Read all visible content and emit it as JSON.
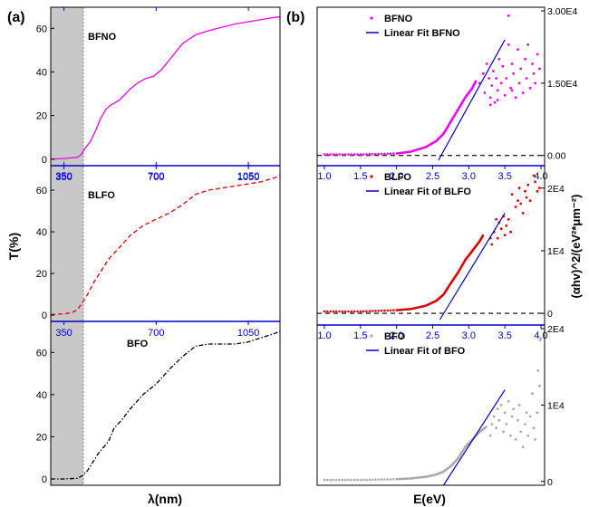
{
  "figure": {
    "panel_a_label": "(a)",
    "panel_b_label": "(b)",
    "a_ylabel": "T(%)",
    "a_xlabel": "λ(nm)",
    "b_xlabel": "E(eV)",
    "b_ylabel": "(αhv)^2/(eV²*μm⁻²)"
  },
  "colors": {
    "bfno": "#ee00ee",
    "blfo": "#dd0000",
    "bfo": "#000000",
    "bfo_points": "#aaaaaa",
    "fit": "#0000cc",
    "axis_blue": "#0000cc",
    "shade": "#c8c8c8"
  },
  "chart_data": [
    {
      "type": "line",
      "id": "a_bfno",
      "label": "BFNO",
      "style": "solid",
      "colorKey": "bfno",
      "xlim": [
        300,
        1170
      ],
      "ylim": [
        -3,
        68
      ],
      "yticks": [
        0,
        20,
        40,
        60
      ],
      "xticks": [
        350,
        700,
        1050
      ],
      "xticks_visible": true,
      "shaded_x": [
        300,
        400
      ],
      "x": [
        300,
        350,
        400,
        415,
        430,
        450,
        470,
        490,
        510,
        530,
        560,
        600,
        630,
        660,
        690,
        720,
        760,
        800,
        850,
        900,
        950,
        1000,
        1050,
        1100,
        1150,
        1170
      ],
      "y": [
        0,
        0.3,
        0.8,
        2,
        5,
        8,
        13,
        19,
        23,
        25,
        27,
        32,
        35,
        37,
        38,
        41,
        47,
        53,
        57,
        59,
        60.5,
        62,
        63,
        64,
        65,
        65.2
      ]
    },
    {
      "type": "line",
      "id": "a_blfo",
      "label": "BLFO",
      "style": "dashed",
      "colorKey": "blfo",
      "xlim": [
        300,
        1170
      ],
      "ylim": [
        -3,
        70
      ],
      "yticks": [
        0,
        20,
        40,
        60
      ],
      "xticks": [
        350,
        700,
        1050
      ],
      "xticks_visible": true,
      "shaded_x": [
        300,
        400
      ],
      "x": [
        300,
        350,
        380,
        400,
        420,
        440,
        460,
        480,
        500,
        520,
        550,
        600,
        650,
        700,
        750,
        800,
        850,
        900,
        950,
        1000,
        1050,
        1100,
        1150,
        1170
      ],
      "y": [
        0.3,
        0.6,
        1.2,
        2.5,
        6,
        10,
        15,
        19,
        23,
        27,
        31,
        38,
        43,
        46,
        49,
        53,
        58,
        60,
        61,
        62,
        63,
        64,
        66,
        67
      ]
    },
    {
      "type": "line",
      "id": "a_bfo",
      "label": "BFO",
      "style": "dashdot",
      "colorKey": "bfo",
      "xlim": [
        300,
        1170
      ],
      "ylim": [
        -3,
        73
      ],
      "yticks": [
        0,
        20,
        40,
        60
      ],
      "xticks": [
        350,
        700,
        1050
      ],
      "xticks_visible": true,
      "shaded_x": [
        300,
        400
      ],
      "x": [
        300,
        350,
        400,
        420,
        440,
        460,
        480,
        500,
        520,
        540,
        570,
        600,
        650,
        700,
        750,
        800,
        850,
        900,
        950,
        1000,
        1050,
        1100,
        1150,
        1170
      ],
      "y": [
        0,
        0,
        0.3,
        1.5,
        4,
        8,
        12,
        15,
        18,
        24,
        28,
        33,
        40,
        45,
        52,
        58,
        63,
        64,
        64,
        64,
        65,
        67,
        69,
        70
      ]
    },
    {
      "type": "scatter",
      "id": "b_bfno",
      "label": "BFNO",
      "fit_label": "Linear Fit BFNO",
      "colorKey": "bfno",
      "xlim": [
        0.9,
        4.05
      ],
      "ylim": [
        -0.1,
        3.0
      ],
      "xticks": [
        1.0,
        1.5,
        2.0,
        2.5,
        3.0,
        3.5,
        4.0
      ],
      "xticks_visible": true,
      "yticks": [
        0,
        1.5,
        3.0
      ],
      "yticklabels": [
        "0.00",
        "1.50E4",
        "3.00E4"
      ],
      "hline": 0,
      "fit": [
        [
          2.58,
          -0.1
        ],
        [
          3.5,
          2.4
        ]
      ],
      "points_curve": [
        [
          1.0,
          0.02
        ],
        [
          1.5,
          0.02
        ],
        [
          2.0,
          0.04
        ],
        [
          2.2,
          0.08
        ],
        [
          2.4,
          0.17
        ],
        [
          2.55,
          0.3
        ],
        [
          2.65,
          0.45
        ],
        [
          2.75,
          0.7
        ],
        [
          2.85,
          0.95
        ],
        [
          2.95,
          1.2
        ],
        [
          3.05,
          1.4
        ],
        [
          3.1,
          1.55
        ]
      ],
      "points_scatter": [
        [
          3.15,
          1.5
        ],
        [
          3.2,
          1.7
        ],
        [
          3.22,
          1.3
        ],
        [
          3.25,
          1.9
        ],
        [
          3.28,
          1.6
        ],
        [
          3.3,
          1.2
        ],
        [
          3.32,
          1.45
        ],
        [
          3.34,
          1.75
        ],
        [
          3.36,
          1.1
        ],
        [
          3.38,
          1.6
        ],
        [
          3.4,
          1.35
        ],
        [
          3.42,
          2.0
        ],
        [
          3.45,
          1.5
        ],
        [
          3.47,
          1.85
        ],
        [
          3.5,
          1.25
        ],
        [
          3.52,
          1.6
        ],
        [
          3.55,
          2.3
        ],
        [
          3.58,
          1.4
        ],
        [
          3.6,
          1.9
        ],
        [
          3.62,
          1.7
        ],
        [
          3.65,
          1.2
        ],
        [
          3.68,
          2.2
        ],
        [
          3.7,
          1.5
        ],
        [
          3.72,
          1.8
        ],
        [
          3.75,
          1.3
        ],
        [
          3.78,
          2.0
        ],
        [
          3.8,
          1.6
        ],
        [
          3.82,
          2.3
        ],
        [
          3.85,
          1.4
        ],
        [
          3.88,
          1.9
        ],
        [
          3.9,
          1.7
        ],
        [
          3.92,
          1.5
        ],
        [
          3.95,
          2.1
        ],
        [
          3.98,
          1.8
        ],
        [
          3.55,
          2.9
        ],
        [
          3.3,
          1.05
        ],
        [
          3.4,
          1.15
        ],
        [
          3.6,
          1.35
        ]
      ]
    },
    {
      "type": "scatter",
      "id": "b_blfo",
      "label": "BLFO",
      "fit_label": "Linear Fit of BLFO",
      "colorKey": "blfo",
      "xlim": [
        0.9,
        4.05
      ],
      "ylim": [
        -0.1,
        2.3
      ],
      "xticks": [
        1.0,
        1.5,
        2.0,
        2.5,
        3.0,
        3.5,
        4.0
      ],
      "xticks_visible": true,
      "yticks": [
        0,
        1.0,
        2.0
      ],
      "yticklabels": [
        "0",
        "1E4",
        "2E4"
      ],
      "hline": 0,
      "fit": [
        [
          2.6,
          -0.1
        ],
        [
          3.5,
          1.6
        ]
      ],
      "points_curve": [
        [
          1.0,
          0.03
        ],
        [
          1.5,
          0.03
        ],
        [
          2.0,
          0.05
        ],
        [
          2.2,
          0.07
        ],
        [
          2.4,
          0.12
        ],
        [
          2.55,
          0.2
        ],
        [
          2.65,
          0.3
        ],
        [
          2.75,
          0.48
        ],
        [
          2.85,
          0.65
        ],
        [
          2.95,
          0.85
        ],
        [
          3.05,
          1.0
        ],
        [
          3.15,
          1.15
        ],
        [
          3.2,
          1.25
        ]
      ],
      "points_scatter": [
        [
          3.35,
          1.3
        ],
        [
          3.38,
          1.5
        ],
        [
          3.4,
          1.2
        ],
        [
          3.42,
          1.45
        ],
        [
          3.45,
          1.35
        ],
        [
          3.48,
          1.55
        ],
        [
          3.5,
          1.25
        ],
        [
          3.52,
          1.4
        ],
        [
          3.55,
          1.5
        ],
        [
          3.58,
          1.3
        ],
        [
          3.6,
          1.9
        ],
        [
          3.65,
          1.7
        ],
        [
          3.68,
          1.8
        ],
        [
          3.7,
          2.0
        ],
        [
          3.72,
          1.75
        ],
        [
          3.75,
          1.6
        ],
        [
          3.78,
          1.95
        ],
        [
          3.8,
          1.85
        ],
        [
          3.82,
          2.05
        ],
        [
          3.85,
          1.8
        ],
        [
          3.9,
          2.2
        ],
        [
          3.92,
          2.1
        ],
        [
          3.95,
          1.95
        ],
        [
          3.98,
          2.0
        ],
        [
          3.3,
          1.2
        ],
        [
          3.32,
          1.1
        ]
      ]
    },
    {
      "type": "scatter",
      "id": "b_bfo",
      "label": "BFO",
      "fit_label": "Linear Fit of BFO",
      "colorKey": "bfo_points",
      "xlim": [
        0.9,
        4.05
      ],
      "ylim": [
        -0.05,
        2.0
      ],
      "xticks": [],
      "xticks_visible": false,
      "yticks": [
        0,
        1.0,
        2.0
      ],
      "yticklabels": [
        "0",
        "1E4",
        "2E4"
      ],
      "hline": null,
      "fit": [
        [
          2.65,
          -0.05
        ],
        [
          3.5,
          1.2
        ]
      ],
      "points_curve": [
        [
          1.0,
          0.02
        ],
        [
          1.5,
          0.02
        ],
        [
          2.0,
          0.03
        ],
        [
          2.2,
          0.04
        ],
        [
          2.4,
          0.06
        ],
        [
          2.55,
          0.09
        ],
        [
          2.65,
          0.13
        ],
        [
          2.75,
          0.2
        ],
        [
          2.85,
          0.3
        ],
        [
          2.95,
          0.45
        ],
        [
          3.05,
          0.55
        ],
        [
          3.15,
          0.65
        ],
        [
          3.25,
          0.72
        ]
      ],
      "points_scatter": [
        [
          3.3,
          0.6
        ],
        [
          3.32,
          0.75
        ],
        [
          3.35,
          0.85
        ],
        [
          3.38,
          0.7
        ],
        [
          3.4,
          0.95
        ],
        [
          3.42,
          0.8
        ],
        [
          3.45,
          1.0
        ],
        [
          3.48,
          0.65
        ],
        [
          3.5,
          0.9
        ],
        [
          3.52,
          0.75
        ],
        [
          3.55,
          1.05
        ],
        [
          3.58,
          0.6
        ],
        [
          3.6,
          0.85
        ],
        [
          3.62,
          0.95
        ],
        [
          3.65,
          0.55
        ],
        [
          3.68,
          0.8
        ],
        [
          3.7,
          1.0
        ],
        [
          3.72,
          0.65
        ],
        [
          3.75,
          0.45
        ],
        [
          3.78,
          0.75
        ],
        [
          3.8,
          0.9
        ],
        [
          3.82,
          0.6
        ],
        [
          3.85,
          0.85
        ],
        [
          3.88,
          1.15
        ],
        [
          3.9,
          0.7
        ],
        [
          3.92,
          0.55
        ],
        [
          3.95,
          0.9
        ],
        [
          3.98,
          1.25
        ],
        [
          3.96,
          1.45
        ],
        [
          3.99,
          1.85
        ]
      ]
    }
  ]
}
